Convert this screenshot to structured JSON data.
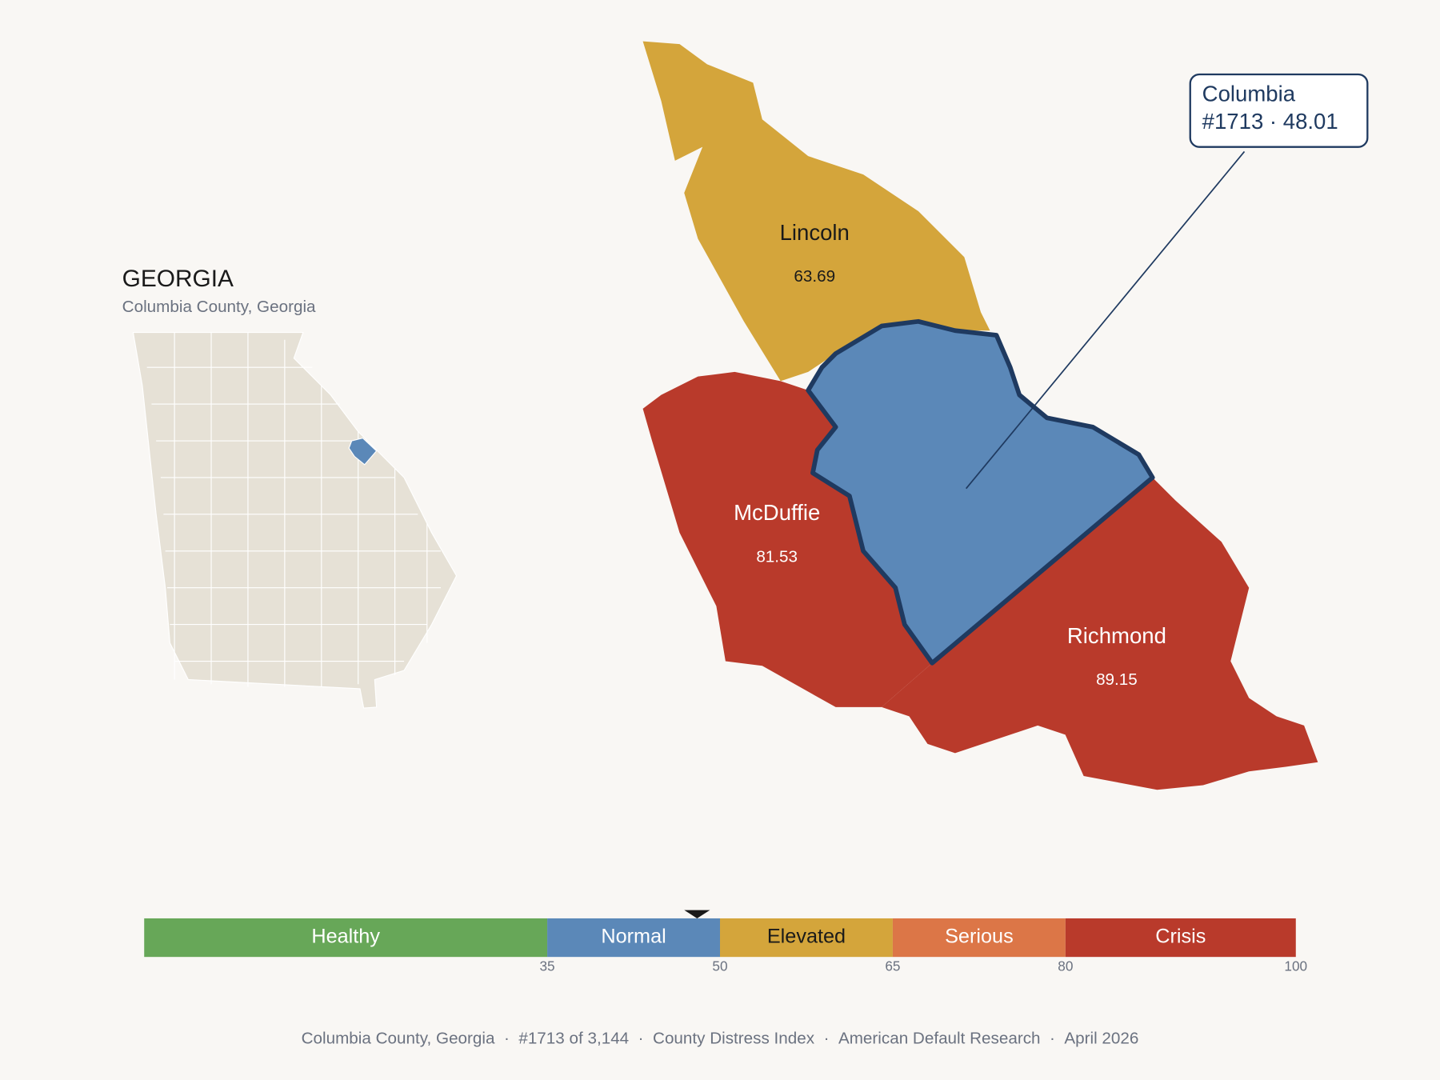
{
  "inset": {
    "title": "GEORGIA",
    "subtitle": "Columbia County, Georgia"
  },
  "counties": [
    {
      "name": "Lincoln",
      "score": 63.69
    },
    {
      "name": "Columbia",
      "score": 48.01
    },
    {
      "name": "McDuffie",
      "score": 81.53
    },
    {
      "name": "Richmond",
      "score": 89.15
    }
  ],
  "callout": {
    "lines": [
      "Columbia",
      "#1713 · 48.01"
    ]
  },
  "scale": {
    "xlim": [
      0,
      100
    ],
    "xticks": [
      35,
      50,
      65,
      80,
      100
    ],
    "bands": [
      {
        "label": "Healthy",
        "from": 0,
        "to": 35,
        "color": "#67a758"
      },
      {
        "label": "Normal",
        "from": 35,
        "to": 50,
        "color": "#5b88b8"
      },
      {
        "label": "Elevated",
        "from": 50,
        "to": 65,
        "color": "#d4a53b"
      },
      {
        "label": "Serious",
        "from": 65,
        "to": 80,
        "color": "#dc7647"
      },
      {
        "label": "Crisis",
        "from": 80,
        "to": 100,
        "color": "#b93a2b"
      }
    ]
  },
  "footer": {
    "items": [
      "Columbia County, Georgia",
      "#1713 of 3,144",
      "County Distress Index",
      "American Default Research",
      "April 2026"
    ],
    "separator": "·"
  }
}
